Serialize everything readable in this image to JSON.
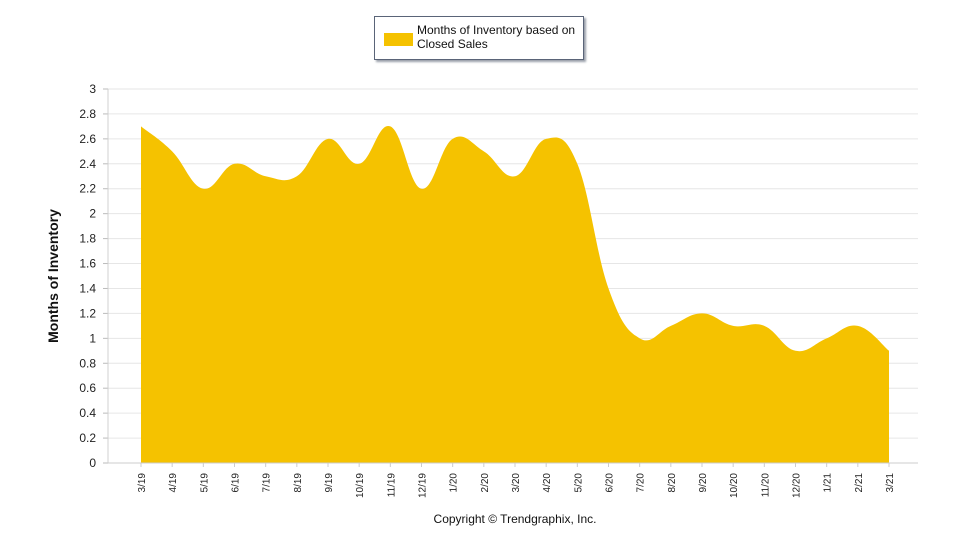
{
  "chart_data": {
    "type": "area",
    "categories": [
      "3/19",
      "4/19",
      "5/19",
      "6/19",
      "7/19",
      "8/19",
      "9/19",
      "10/19",
      "11/19",
      "12/19",
      "1/20",
      "2/20",
      "3/20",
      "4/20",
      "5/20",
      "6/20",
      "7/20",
      "8/20",
      "9/20",
      "10/20",
      "11/20",
      "12/20",
      "1/21",
      "2/21",
      "3/21"
    ],
    "series": [
      {
        "name": "Months of Inventory based on Closed Sales",
        "color": "#f5c200",
        "values": [
          2.7,
          2.5,
          2.2,
          2.4,
          2.3,
          2.3,
          2.6,
          2.4,
          2.7,
          2.2,
          2.6,
          2.5,
          2.3,
          2.6,
          2.4,
          1.4,
          1.0,
          1.1,
          1.2,
          1.1,
          1.1,
          0.9,
          1.0,
          1.1,
          0.9
        ]
      }
    ],
    "ylabel": "Months of Inventory",
    "xlabel": "",
    "ylim": [
      0,
      3
    ],
    "yticks": [
      "0",
      "0.2",
      "0.4",
      "0.6",
      "0.8",
      "1",
      "1.2",
      "1.4",
      "1.6",
      "1.8",
      "2",
      "2.2",
      "2.4",
      "2.6",
      "2.8",
      "3"
    ],
    "grid": true,
    "legend_position": "top"
  },
  "legend": {
    "label": "Months of Inventory based on Closed Sales",
    "color": "#f5c200"
  },
  "copyright": "Copyright © Trendgraphix, Inc."
}
